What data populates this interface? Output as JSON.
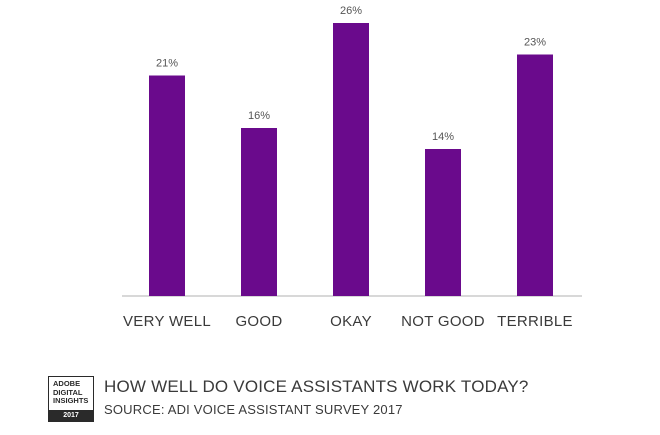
{
  "chart_data": {
    "type": "bar",
    "categories": [
      "VERY WELL",
      "GOOD",
      "OKAY",
      "NOT GOOD",
      "TERRIBLE"
    ],
    "values": [
      21,
      16,
      26,
      14,
      23
    ],
    "value_labels": [
      "21%",
      "16%",
      "26%",
      "14%",
      "23%"
    ],
    "ylim": [
      0,
      30
    ],
    "grid": false,
    "bar_color": "#6a0a8c",
    "axis_color": "#cccccc"
  },
  "footer": {
    "badge_lines": [
      "ADOBE",
      "DIGITAL",
      "INSIGHTS"
    ],
    "badge_year": "2017",
    "title": "HOW WELL DO VOICE ASSISTANTS WORK TODAY?",
    "source": "SOURCE: ADI VOICE ASSISTANT SURVEY 2017"
  }
}
